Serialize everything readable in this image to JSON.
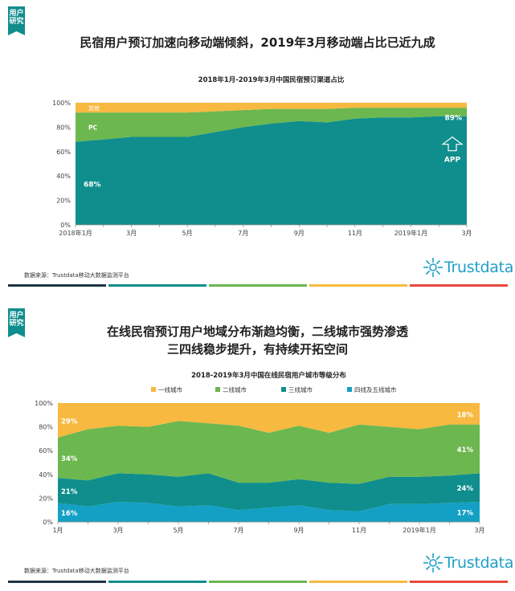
{
  "brand": {
    "name": "Trustdata",
    "tag_label_line1": "用户",
    "tag_label_line2": "研究"
  },
  "section1": {
    "headline": "民宿用户预订加速向移动端倾斜，2019年3月移动端占比已近九成",
    "source": "数据来源：Trustdata移动大数据监测平台"
  },
  "section2": {
    "headline_line1": "在线民宿预订用户地域分布渐趋均衡，二线城市强势渗透",
    "headline_line2": "三四线稳步提升，有持续开拓空间",
    "source": "数据来源：Trustdata移动大数据监测平台"
  },
  "colors": {
    "teal": "#0f8e8d",
    "green": "#6cb74f",
    "yellow": "#f7b940",
    "blue": "#13a0c4",
    "divider": [
      "#1c3441",
      "#0f8e8d",
      "#6cb74f",
      "#f7b940",
      "#e84a3e"
    ]
  },
  "chart_data": [
    {
      "type": "area",
      "title": "2018年1月-2019年3月中国民宿预订渠道占比",
      "stacked": true,
      "x": [
        "2018年1月",
        "2月",
        "3月",
        "4月",
        "5月",
        "6月",
        "7月",
        "8月",
        "9月",
        "10月",
        "11月",
        "12月",
        "2019年1月",
        "2月",
        "3月"
      ],
      "x_tick_labels": [
        "2018年1月",
        "",
        "3月",
        "",
        "5月",
        "",
        "7月",
        "",
        "9月",
        "",
        "11月",
        "",
        "2019年1月",
        "",
        "3月"
      ],
      "y_tick_labels": [
        "0%",
        "20%",
        "40%",
        "60%",
        "80%",
        "100%"
      ],
      "ylim": [
        0,
        100
      ],
      "series": [
        {
          "name": "APP",
          "color": "#0f8e8d",
          "values": [
            68,
            70,
            72,
            72,
            72,
            76,
            80,
            83,
            85,
            84,
            87,
            88,
            88,
            89,
            89
          ]
        },
        {
          "name": "PC",
          "color": "#6cb74f",
          "values": [
            24,
            22,
            20,
            20,
            20,
            17,
            14,
            12,
            10,
            11,
            9,
            8,
            8,
            7,
            7
          ]
        },
        {
          "name": "其他",
          "color": "#f7b940",
          "values": [
            8,
            8,
            8,
            8,
            8,
            7,
            6,
            5,
            5,
            5,
            4,
            4,
            4,
            4,
            4
          ]
        }
      ],
      "annotations": {
        "start_value": "68%",
        "end_value": "89%",
        "pc_label": "PC",
        "other_label": "其他",
        "app_label": "APP"
      }
    },
    {
      "type": "area",
      "title": "2018-2019年3月中国在线民宿用户城市等级分布",
      "stacked": true,
      "x": [
        "1月",
        "2月",
        "3月",
        "4月",
        "5月",
        "6月",
        "7月",
        "8月",
        "9月",
        "10月",
        "11月",
        "12月",
        "2019年1月",
        "2月",
        "3月"
      ],
      "x_tick_labels": [
        "1月",
        "",
        "3月",
        "",
        "5月",
        "",
        "7月",
        "",
        "9月",
        "",
        "11月",
        "",
        "2019年1月",
        "",
        "3月"
      ],
      "y_tick_labels": [
        "0%",
        "20%",
        "40%",
        "60%",
        "80%",
        "100%"
      ],
      "ylim": [
        0,
        100
      ],
      "legend": [
        "一线城市",
        "二线城市",
        "三线城市",
        "四线及五线城市"
      ],
      "series": [
        {
          "name": "四线及五线城市",
          "color": "#13a0c4",
          "values": [
            16,
            13,
            17,
            16,
            13,
            14,
            10,
            12,
            14,
            10,
            9,
            15,
            15,
            16,
            17
          ]
        },
        {
          "name": "三线城市",
          "color": "#0f8e8d",
          "values": [
            21,
            22,
            24,
            24,
            25,
            27,
            23,
            21,
            22,
            23,
            23,
            23,
            23,
            23,
            24
          ]
        },
        {
          "name": "二线城市",
          "color": "#6cb74f",
          "values": [
            34,
            43,
            40,
            40,
            47,
            42,
            48,
            42,
            45,
            42,
            50,
            42,
            40,
            43,
            41
          ]
        },
        {
          "name": "一线城市",
          "color": "#f7b940",
          "values": [
            29,
            22,
            19,
            20,
            15,
            17,
            19,
            25,
            19,
            25,
            18,
            20,
            22,
            18,
            18
          ]
        }
      ],
      "annotations": {
        "start": [
          "29%",
          "34%",
          "21%",
          "16%"
        ],
        "end": [
          "18%",
          "41%",
          "24%",
          "17%"
        ]
      }
    }
  ]
}
